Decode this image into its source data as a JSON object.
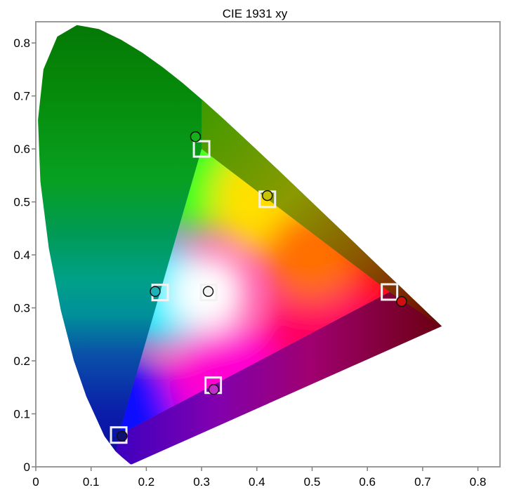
{
  "chart_data": {
    "type": "scatter",
    "title": "CIE 1931 xy",
    "xlabel": "",
    "ylabel": "",
    "xlim": [
      0,
      0.84
    ],
    "ylim": [
      0,
      0.84
    ],
    "x_ticks": [
      "0",
      "0.1",
      "0.2",
      "0.3",
      "0.4",
      "0.5",
      "0.6",
      "0.7",
      "0.8"
    ],
    "y_ticks": [
      "0",
      "0.1",
      "0.2",
      "0.3",
      "0.4",
      "0.5",
      "0.6",
      "0.7",
      "0.8"
    ],
    "grid": false,
    "gamut_triangle": [
      {
        "color": "red",
        "x": 0.64,
        "y": 0.33
      },
      {
        "color": "green",
        "x": 0.3,
        "y": 0.6
      },
      {
        "color": "blue",
        "x": 0.15,
        "y": 0.06
      }
    ],
    "target_points": [
      {
        "color": "red",
        "x": 0.64,
        "y": 0.33,
        "hex": "#b00000"
      },
      {
        "color": "green",
        "x": 0.3,
        "y": 0.6,
        "hex": "#20a020"
      },
      {
        "color": "blue",
        "x": 0.15,
        "y": 0.06,
        "hex": "#1a1aa0"
      },
      {
        "color": "yellow",
        "x": 0.419,
        "y": 0.505,
        "hex": "#d0c000"
      },
      {
        "color": "cyan",
        "x": 0.225,
        "y": 0.329,
        "hex": "#10b0b0"
      },
      {
        "color": "magenta",
        "x": 0.321,
        "y": 0.154,
        "hex": "#c020c0"
      },
      {
        "color": "white",
        "x": 0.3127,
        "y": 0.329,
        "hex": "#ffffff"
      }
    ],
    "measured_points": [
      {
        "color": "red",
        "x": 0.662,
        "y": 0.312,
        "hex": "#d01010"
      },
      {
        "color": "green",
        "x": 0.289,
        "y": 0.623,
        "hex": "#18b018"
      },
      {
        "color": "blue",
        "x": 0.156,
        "y": 0.058,
        "hex": "#101070"
      },
      {
        "color": "yellow",
        "x": 0.419,
        "y": 0.512,
        "hex": "#c8c400"
      },
      {
        "color": "cyan",
        "x": 0.216,
        "y": 0.331,
        "hex": "#20b0b8"
      },
      {
        "color": "magenta",
        "x": 0.322,
        "y": 0.146,
        "hex": "#c030c8"
      },
      {
        "color": "white",
        "x": 0.312,
        "y": 0.331,
        "hex": "#f4f4f4"
      }
    ],
    "locus_points": [
      [
        0.1741,
        0.005
      ],
      [
        0.1738,
        0.0049
      ],
      [
        0.1733,
        0.0048
      ],
      [
        0.1726,
        0.0048
      ],
      [
        0.1714,
        0.0051
      ],
      [
        0.1689,
        0.0069
      ],
      [
        0.1644,
        0.0109
      ],
      [
        0.1566,
        0.0177
      ],
      [
        0.144,
        0.0297
      ],
      [
        0.1241,
        0.0578
      ],
      [
        0.0913,
        0.1327
      ],
      [
        0.0687,
        0.2007
      ],
      [
        0.0454,
        0.295
      ],
      [
        0.0235,
        0.4127
      ],
      [
        0.0082,
        0.5384
      ],
      [
        0.0039,
        0.6548
      ],
      [
        0.0139,
        0.7502
      ],
      [
        0.0389,
        0.812
      ],
      [
        0.0743,
        0.8338
      ],
      [
        0.1142,
        0.8262
      ],
      [
        0.1547,
        0.8059
      ],
      [
        0.1929,
        0.7816
      ],
      [
        0.2296,
        0.7543
      ],
      [
        0.2658,
        0.7243
      ],
      [
        0.3016,
        0.6923
      ],
      [
        0.3373,
        0.6589
      ],
      [
        0.3731,
        0.6245
      ],
      [
        0.4087,
        0.5896
      ],
      [
        0.4441,
        0.5547
      ],
      [
        0.4788,
        0.5202
      ],
      [
        0.5125,
        0.4866
      ],
      [
        0.5448,
        0.4544
      ],
      [
        0.5752,
        0.4242
      ],
      [
        0.6029,
        0.3965
      ],
      [
        0.627,
        0.3725
      ],
      [
        0.6482,
        0.3514
      ],
      [
        0.6658,
        0.334
      ],
      [
        0.6801,
        0.3197
      ],
      [
        0.6915,
        0.3083
      ],
      [
        0.7006,
        0.2993
      ],
      [
        0.7079,
        0.292
      ],
      [
        0.714,
        0.2859
      ],
      [
        0.719,
        0.2809
      ],
      [
        0.723,
        0.277
      ],
      [
        0.726,
        0.274
      ],
      [
        0.7283,
        0.2717
      ],
      [
        0.73,
        0.27
      ],
      [
        0.7311,
        0.2689
      ],
      [
        0.732,
        0.268
      ],
      [
        0.7327,
        0.2673
      ],
      [
        0.7334,
        0.2666
      ],
      [
        0.734,
        0.266
      ],
      [
        0.7344,
        0.2656
      ],
      [
        0.7346,
        0.2654
      ],
      [
        0.7347,
        0.2653
      ]
    ]
  }
}
